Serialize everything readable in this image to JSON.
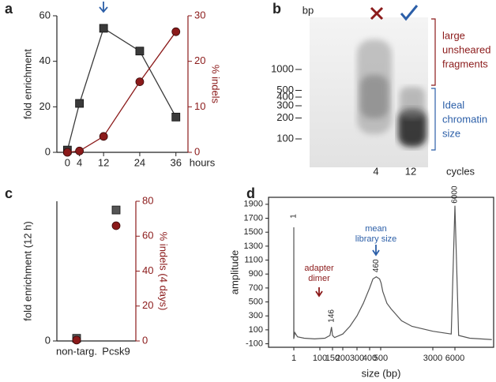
{
  "panels": [
    "a",
    "b",
    "c",
    "d"
  ],
  "gel": {
    "units": "bp",
    "ladder": [
      1000,
      500,
      400,
      300,
      200,
      100
    ],
    "lanes": [
      "4",
      "12"
    ],
    "lanes_label": "cycles",
    "brackets": [
      {
        "lines": [
          "large",
          "unsheared",
          "fragments"
        ],
        "color": "#8b1a1a"
      },
      {
        "lines": [
          "Ideal",
          "chromatin",
          "size"
        ],
        "color": "#2c5fa8"
      }
    ]
  },
  "chart_data": [
    {
      "type": "line",
      "x": [
        0,
        4,
        12,
        24,
        36
      ],
      "xlim": [
        -3.5,
        40
      ],
      "xticks": [
        0,
        4,
        12,
        24,
        36
      ],
      "xlabel": "hours",
      "ylabel": "fold enrichment",
      "y2label": "% indels",
      "ylim": [
        0,
        60
      ],
      "yticks": [
        0,
        20,
        40,
        60
      ],
      "y2lim": [
        0,
        30
      ],
      "y2ticks": [
        0,
        10,
        20,
        30
      ],
      "series": [
        {
          "color": "#3a3a3a",
          "marker": "square",
          "values": [
            1,
            21.5,
            54.5,
            44.5,
            15.5
          ]
        },
        {
          "color": "#8b1a1a",
          "marker": "circle",
          "axis": "y2",
          "values": [
            0,
            0.3,
            3.5,
            15.5,
            26.5
          ]
        }
      ]
    },
    {
      "type": "scatter",
      "categories": [
        "non-targ.",
        "Pcsk9"
      ],
      "ylabel": "fold enrichment (12 h)",
      "y2label": "% indels (4 days)",
      "ylim": [
        0,
        80
      ],
      "yticks": [
        0
      ],
      "y2lim": [
        0,
        80
      ],
      "y2ticks": [
        0,
        20,
        40,
        60,
        80
      ],
      "series": [
        {
          "color": "#555555",
          "marker": "square",
          "values": [
            1.5,
            75
          ]
        },
        {
          "color": "#8b1a1a",
          "marker": "circle",
          "axis": "y2",
          "values": [
            0.5,
            66
          ]
        }
      ]
    },
    {
      "type": "trace",
      "xlabel": "size (bp)",
      "ylabel": "amplitude",
      "xscale": "ladder",
      "xticks": [
        1,
        100,
        150,
        200,
        300,
        400,
        500,
        3000,
        6000
      ],
      "ylim": [
        -150,
        2000
      ],
      "yticks": [
        -100,
        100,
        300,
        500,
        700,
        900,
        1100,
        1300,
        1500,
        1700,
        1900
      ],
      "x": [
        0.5,
        0.8,
        1,
        1.3,
        5,
        15,
        40,
        80,
        120,
        140,
        146,
        150,
        160,
        200,
        250,
        300,
        350,
        400,
        430,
        460,
        490,
        520,
        600,
        800,
        1000,
        1500,
        2000,
        3000,
        5500,
        6000,
        6500,
        8000,
        11000
      ],
      "values": [
        -30,
        -20,
        1570,
        -20,
        60,
        0,
        -20,
        -30,
        -20,
        20,
        140,
        20,
        -10,
        40,
        150,
        300,
        480,
        700,
        830,
        860,
        830,
        770,
        650,
        480,
        400,
        230,
        150,
        80,
        40,
        1880,
        20,
        -20,
        -40
      ],
      "color": "#555555",
      "grid": false,
      "peak_labels": [
        1,
        146,
        460,
        6000
      ],
      "annotations": [
        {
          "lines": [
            "adapter",
            "dimer"
          ],
          "color": "#8b1a1a"
        },
        {
          "lines": [
            "mean",
            "library size"
          ],
          "color": "#2c5fa8"
        }
      ]
    }
  ]
}
